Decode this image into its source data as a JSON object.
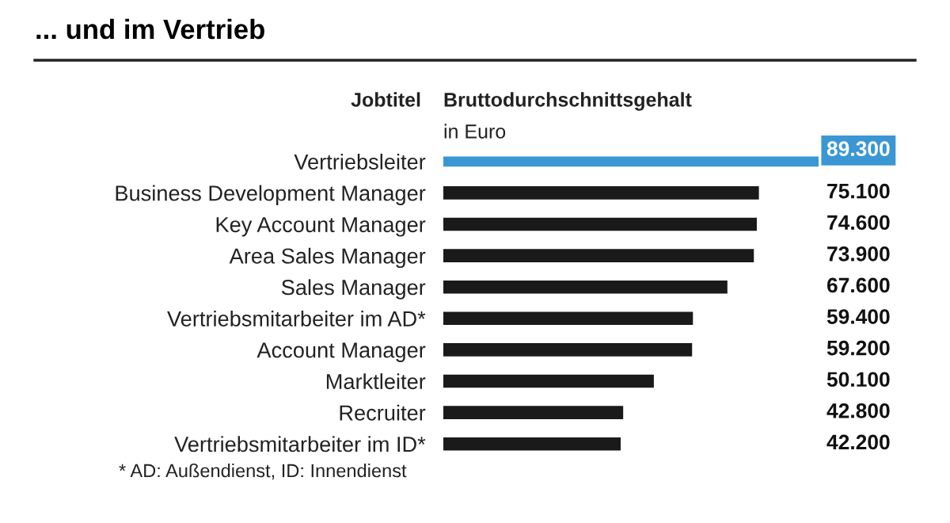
{
  "chart_data": {
    "type": "bar",
    "orientation": "horizontal",
    "title": "... und im Vertrieb",
    "categories": [
      "Vertriebsleiter",
      "Business Development Manager",
      "Key Account Manager",
      "Area Sales Manager",
      "Sales Manager",
      "Vertriebsmitarbeiter im AD*",
      "Account Manager",
      "Marktleiter",
      "Recruiter",
      "Vertriebsmitarbeiter im ID*"
    ],
    "values": [
      89300,
      75100,
      74600,
      73900,
      67600,
      59400,
      59200,
      50100,
      42800,
      42200
    ],
    "value_labels": [
      "89.300",
      "75.100",
      "74.600",
      "73.900",
      "67.600",
      "59.400",
      "59.200",
      "50.100",
      "42.800",
      "42.200"
    ],
    "colors": [
      "#3a97d4",
      "#1a1a1a",
      "#1a1a1a",
      "#1a1a1a",
      "#1a1a1a",
      "#1a1a1a",
      "#1a1a1a",
      "#1a1a1a",
      "#1a1a1a",
      "#1a1a1a"
    ],
    "xlim": [
      0,
      89300
    ],
    "annotations": [
      "Jobtitel",
      "Bruttodurchschnittsgehalt",
      "in Euro",
      "* AD: Außendienst, ID: Innendienst"
    ],
    "grid": false,
    "legend": false
  }
}
